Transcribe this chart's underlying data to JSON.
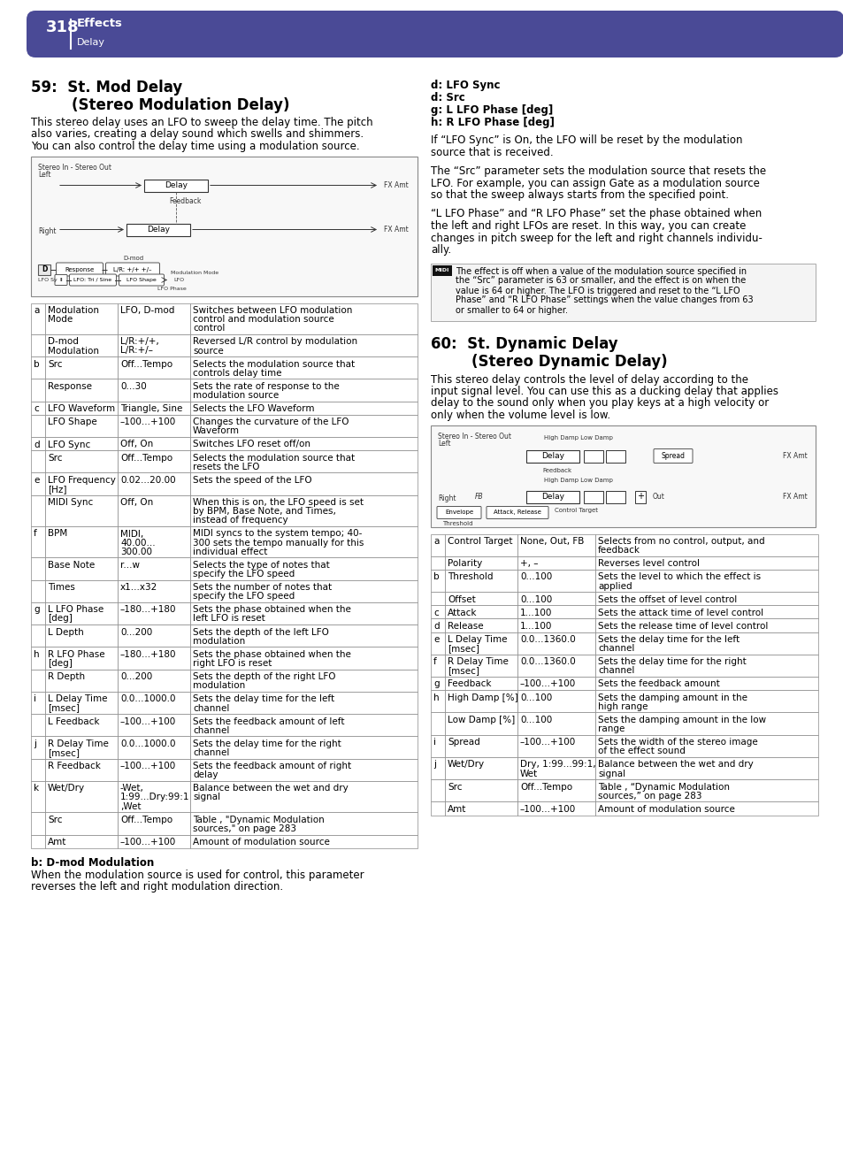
{
  "page_number": "318",
  "header_title": "Effects",
  "header_subtitle": "Delay",
  "header_bg_color": "#4a4a96",
  "header_text_color": "#ffffff",
  "bg_color": "#ffffff",
  "section1_title": "59:  St. Mod Delay",
  "section1_subtitle": "        (Stereo Modulation Delay)",
  "section1_body": "This stereo delay uses an LFO to sweep the delay time. The pitch\nalso varies, creating a delay sound which swells and shimmers.\nYou can also control the delay time using a modulation source.",
  "section1_table": [
    [
      "a",
      "Modulation\nMode",
      "LFO, D-mod",
      "Switches between LFO modulation\ncontrol and modulation source\ncontrol"
    ],
    [
      "",
      "D-mod\nModulation",
      "L/R:+/+,\nL/R:+/–",
      "Reversed L/R control by modulation\nsource"
    ],
    [
      "b",
      "Src",
      "Off...Tempo",
      "Selects the modulation source that\ncontrols delay time"
    ],
    [
      "",
      "Response",
      "0...30",
      "Sets the rate of response to the\nmodulation source"
    ],
    [
      "c",
      "LFO Waveform",
      "Triangle, Sine",
      "Selects the LFO Waveform"
    ],
    [
      "",
      "LFO Shape",
      "–100...+100",
      "Changes the curvature of the LFO\nWaveform"
    ],
    [
      "d",
      "LFO Sync",
      "Off, On",
      "Switches LFO reset off/on"
    ],
    [
      "",
      "Src",
      "Off...Tempo",
      "Selects the modulation source that\nresets the LFO"
    ],
    [
      "e",
      "LFO Frequency\n[Hz]",
      "0.02...20.00",
      "Sets the speed of the LFO"
    ],
    [
      "",
      "MIDI Sync",
      "Off, On",
      "When this is on, the LFO speed is set\nby BPM, Base Note, and Times,\ninstead of frequency"
    ],
    [
      "f",
      "BPM",
      "MIDI,\n40.00...\n300.00",
      "MIDI syncs to the system tempo; 40-\n300 sets the tempo manually for this\nindividual effect"
    ],
    [
      "",
      "Base Note",
      "r...w",
      "Selects the type of notes that\nspecify the LFO speed"
    ],
    [
      "",
      "Times",
      "x1...x32",
      "Sets the number of notes that\nspecify the LFO speed"
    ],
    [
      "g",
      "L LFO Phase\n[deg]",
      "–180...+180",
      "Sets the phase obtained when the\nleft LFO is reset"
    ],
    [
      "",
      "L Depth",
      "0...200",
      "Sets the depth of the left LFO\nmodulation"
    ],
    [
      "h",
      "R LFO Phase\n[deg]",
      "–180...+180",
      "Sets the phase obtained when the\nright LFO is reset"
    ],
    [
      "",
      "R Depth",
      "0...200",
      "Sets the depth of the right LFO\nmodulation"
    ],
    [
      "i",
      "L Delay Time\n[msec]",
      "0.0...1000.0",
      "Sets the delay time for the left\nchannel"
    ],
    [
      "",
      "L Feedback",
      "–100...+100",
      "Sets the feedback amount of left\nchannel"
    ],
    [
      "j",
      "R Delay Time\n[msec]",
      "0.0...1000.0",
      "Sets the delay time for the right\nchannel"
    ],
    [
      "",
      "R Feedback",
      "–100...+100",
      "Sets the feedback amount of right\ndelay"
    ],
    [
      "k",
      "Wet/Dry",
      "-Wet,\n1:99...Dry:99:1\n,Wet",
      "Balance between the wet and dry\nsignal"
    ],
    [
      "",
      "Src",
      "Off...Tempo",
      "Table , \"Dynamic Modulation\nsources,\" on page 283"
    ],
    [
      "",
      "Amt",
      "–100...+100",
      "Amount of modulation source"
    ]
  ],
  "section1_bmod_title": "b: D-mod Modulation",
  "section1_bmod_body": "When the modulation source is used for control, this parameter\nreverses the left and right modulation direction.",
  "section1_right_labels": [
    "d: LFO Sync",
    "d: Src",
    "g: L LFO Phase [deg]",
    "h: R LFO Phase [deg]"
  ],
  "section1_right_para1": "If “LFO Sync” is On, the LFO will be reset by the modulation\nsource that is received.",
  "section1_right_para2": "The “Src” parameter sets the modulation source that resets the\nLFO. For example, you can assign Gate as a modulation source\nso that the sweep always starts from the specified point.",
  "section1_right_para3": "“L LFO Phase” and “R LFO Phase” set the phase obtained when\nthe left and right LFOs are reset. In this way, you can create\nchanges in pitch sweep for the left and right channels individu-\nally.",
  "section1_midi_note": "The effect is off when a value of the modulation source specified in\nthe “Src” parameter is 63 or smaller, and the effect is on when the\nvalue is 64 or higher. The LFO is triggered and reset to the “L LFO\nPhase” and “R LFO Phase” settings when the value changes from 63\nor smaller to 64 or higher.",
  "section2_title": "60:  St. Dynamic Delay",
  "section2_subtitle": "        (Stereo Dynamic Delay)",
  "section2_body": "This stereo delay controls the level of delay according to the\ninput signal level. You can use this as a ducking delay that applies\ndelay to the sound only when you play keys at a high velocity or\nonly when the volume level is low.",
  "section2_table": [
    [
      "a",
      "Control Target",
      "None, Out, FB",
      "Selects from no control, output, and\nfeedback"
    ],
    [
      "",
      "Polarity",
      "+, –",
      "Reverses level control"
    ],
    [
      "b",
      "Threshold",
      "0...100",
      "Sets the level to which the effect is\napplied"
    ],
    [
      "",
      "Offset",
      "0...100",
      "Sets the offset of level control"
    ],
    [
      "c",
      "Attack",
      "1...100",
      "Sets the attack time of level control"
    ],
    [
      "d",
      "Release",
      "1...100",
      "Sets the release time of level control"
    ],
    [
      "e",
      "L Delay Time\n[msec]",
      "0.0...1360.0",
      "Sets the delay time for the left\nchannel"
    ],
    [
      "f",
      "R Delay Time\n[msec]",
      "0.0...1360.0",
      "Sets the delay time for the right\nchannel"
    ],
    [
      "g",
      "Feedback",
      "–100...+100",
      "Sets the feedback amount"
    ],
    [
      "h",
      "High Damp [%]",
      "0...100",
      "Sets the damping amount in the\nhigh range"
    ],
    [
      "",
      "Low Damp [%]",
      "0...100",
      "Sets the damping amount in the low\nrange"
    ],
    [
      "i",
      "Spread",
      "–100...+100",
      "Sets the width of the stereo image\nof the effect sound"
    ],
    [
      "j",
      "Wet/Dry",
      "Dry, 1:99...99:1,\nWet",
      "Balance between the wet and dry\nsignal"
    ],
    [
      "",
      "Src",
      "Off...Tempo",
      "Table , “Dynamic Modulation\nsources,” on page 283"
    ],
    [
      "",
      "Amt",
      "–100...+100",
      "Amount of modulation source"
    ]
  ]
}
